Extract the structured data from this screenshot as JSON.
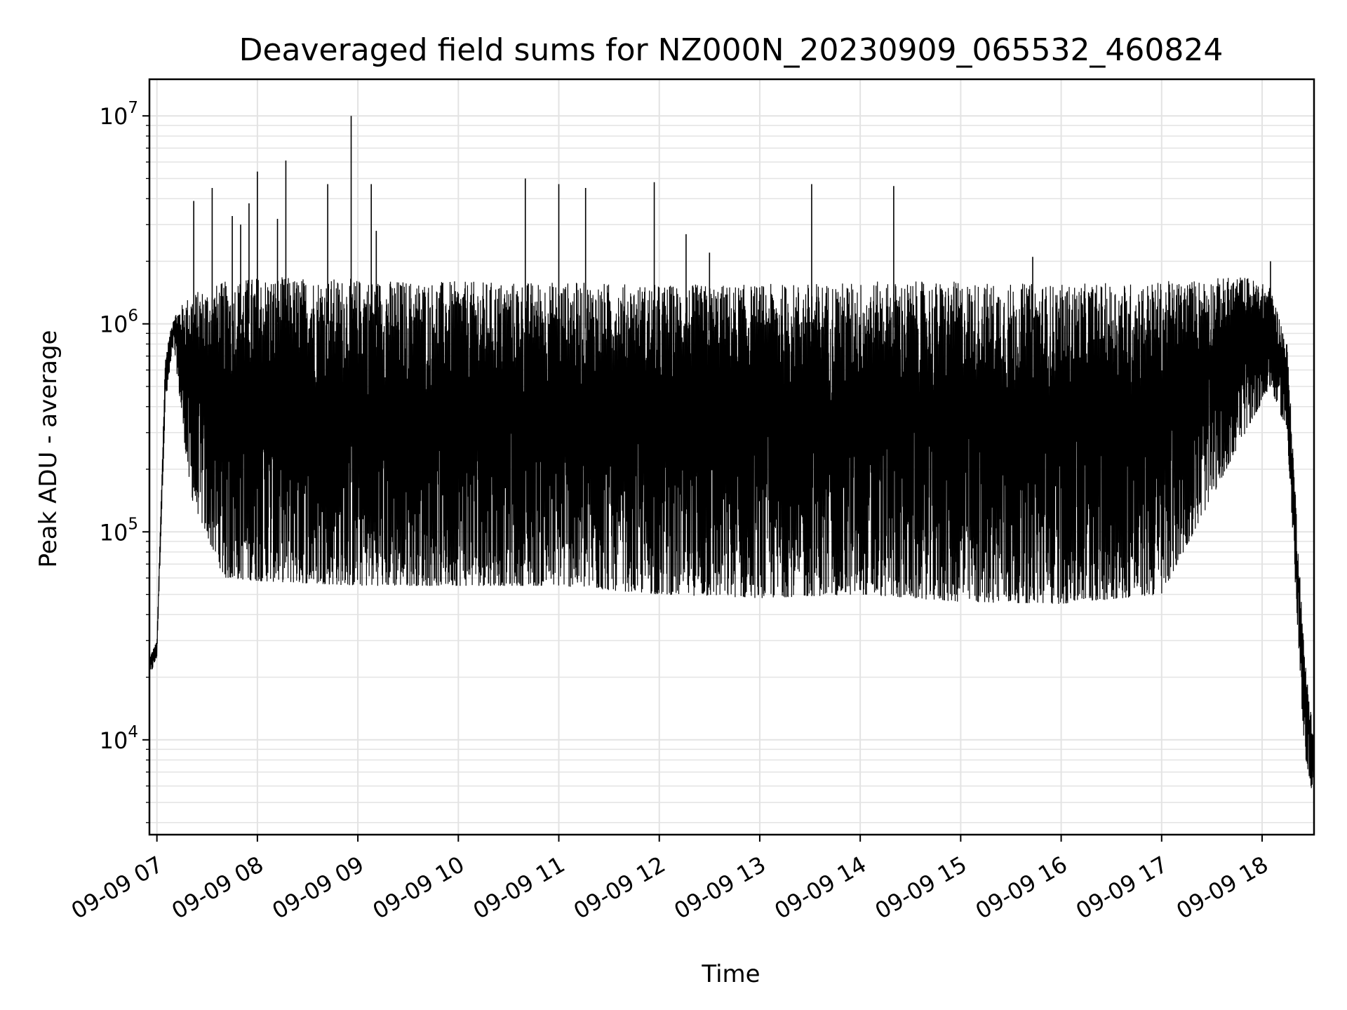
{
  "chart_data": {
    "type": "line",
    "title": "Deaveraged field sums for NZ000N_20230909_065532_460824",
    "xlabel": "Time",
    "ylabel": "Peak ADU - average",
    "yscale": "log",
    "xlim": [
      "2023-09-09T06:55:32",
      "2023-09-09T18:31:00"
    ],
    "ylim": [
      3500,
      15000000
    ],
    "grid": true,
    "line_color": "#000000",
    "x_ticks": [
      "09-09 07",
      "09-09 08",
      "09-09 09",
      "09-09 10",
      "09-09 11",
      "09-09 12",
      "09-09 13",
      "09-09 14",
      "09-09 15",
      "09-09 16",
      "09-09 17",
      "09-09 18"
    ],
    "x_tick_times": [
      "2023-09-09T07:00",
      "2023-09-09T08:00",
      "2023-09-09T09:00",
      "2023-09-09T10:00",
      "2023-09-09T11:00",
      "2023-09-09T12:00",
      "2023-09-09T13:00",
      "2023-09-09T14:00",
      "2023-09-09T15:00",
      "2023-09-09T16:00",
      "2023-09-09T17:00",
      "2023-09-09T18:00"
    ],
    "y_ticks": [
      {
        "base": "10",
        "exp": "4",
        "value": 10000
      },
      {
        "base": "10",
        "exp": "5",
        "value": 100000
      },
      {
        "base": "10",
        "exp": "6",
        "value": 1000000
      },
      {
        "base": "10",
        "exp": "7",
        "value": 10000000
      }
    ],
    "series": [
      {
        "envelope": {
          "x": [
            "2023-09-09T06:55:32",
            "2023-09-09T07:00",
            "2023-09-09T07:05",
            "2023-09-09T07:10",
            "2023-09-09T07:20",
            "2023-09-09T07:40",
            "2023-09-09T08:00",
            "2023-09-09T09:00",
            "2023-09-09T10:00",
            "2023-09-09T11:00",
            "2023-09-09T12:00",
            "2023-09-09T13:00",
            "2023-09-09T14:00",
            "2023-09-09T15:00",
            "2023-09-09T16:00",
            "2023-09-09T17:00",
            "2023-09-09T17:50",
            "2023-09-09T18:05",
            "2023-09-09T18:15",
            "2023-09-09T18:25",
            "2023-09-09T18:31"
          ],
          "high": [
            25000,
            30000,
            700000,
            1100000,
            1400000,
            1600000,
            1700000,
            1650000,
            1600000,
            1600000,
            1550000,
            1550000,
            1600000,
            1600000,
            1550000,
            1600000,
            1700000,
            1500000,
            800000,
            28000,
            10000
          ],
          "low": [
            20000,
            25000,
            400000,
            800000,
            150000,
            60000,
            58000,
            55000,
            55000,
            55000,
            50000,
            48000,
            50000,
            46000,
            45000,
            50000,
            300000,
            500000,
            300000,
            9000,
            5000
          ]
        },
        "spikes": [
          {
            "x": "2023-09-09T07:22",
            "y": 3900000
          },
          {
            "x": "2023-09-09T07:33",
            "y": 4500000
          },
          {
            "x": "2023-09-09T07:45",
            "y": 3300000
          },
          {
            "x": "2023-09-09T07:50",
            "y": 3000000
          },
          {
            "x": "2023-09-09T07:55",
            "y": 3800000
          },
          {
            "x": "2023-09-09T08:00",
            "y": 5400000
          },
          {
            "x": "2023-09-09T08:12",
            "y": 3200000
          },
          {
            "x": "2023-09-09T08:17",
            "y": 6100000
          },
          {
            "x": "2023-09-09T08:42",
            "y": 4700000
          },
          {
            "x": "2023-09-09T08:56",
            "y": 10000000
          },
          {
            "x": "2023-09-09T09:08",
            "y": 4700000
          },
          {
            "x": "2023-09-09T09:11",
            "y": 2800000
          },
          {
            "x": "2023-09-09T10:40",
            "y": 5000000
          },
          {
            "x": "2023-09-09T11:00",
            "y": 4700000
          },
          {
            "x": "2023-09-09T11:16",
            "y": 4500000
          },
          {
            "x": "2023-09-09T11:57",
            "y": 4800000
          },
          {
            "x": "2023-09-09T12:16",
            "y": 2700000
          },
          {
            "x": "2023-09-09T12:30",
            "y": 2200000
          },
          {
            "x": "2023-09-09T13:31",
            "y": 4700000
          },
          {
            "x": "2023-09-09T14:20",
            "y": 4600000
          },
          {
            "x": "2023-09-09T15:43",
            "y": 2100000
          },
          {
            "x": "2023-09-09T18:05",
            "y": 2000000
          }
        ]
      }
    ]
  }
}
